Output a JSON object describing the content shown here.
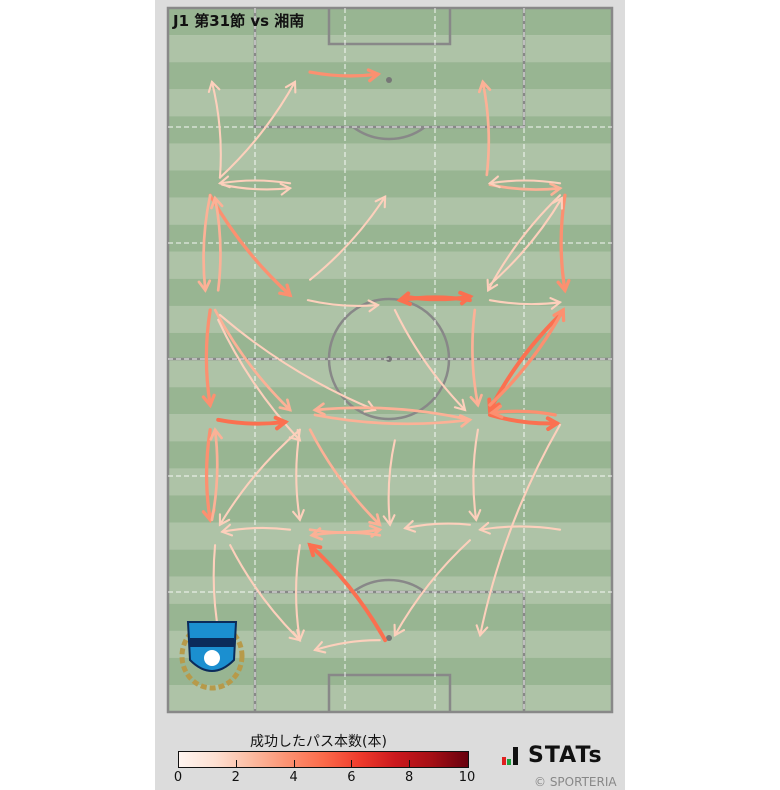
{
  "title": "J1 第31節 vs 湘南",
  "colorbar": {
    "title": "成功したパス本数(本)",
    "ticks": [
      "0",
      "2",
      "4",
      "6",
      "8",
      "10"
    ],
    "range": [
      0,
      10
    ],
    "colormap": "Reds"
  },
  "branding": {
    "stats": "STATs",
    "copyright": "© SPORTERIA"
  },
  "colors": {
    "pitch_light": "#aec3a7",
    "pitch_dark": "#98b592",
    "lines": "#888888",
    "panel": "#dcdcdc"
  },
  "chart_data": {
    "type": "pass-map",
    "units": "percent of pitch (x: width 0-100 left→right, y: length 0-100 top→bottom)",
    "value_label": "成功したパス本数(本)",
    "passes": [
      [
        32,
        9.1,
        47.3,
        9.4,
        3
      ],
      [
        11.7,
        24.1,
        28.6,
        10.5,
        1
      ],
      [
        11.7,
        24.1,
        9.9,
        10.5,
        1
      ],
      [
        12.2,
        25.1,
        27.5,
        25.6,
        1
      ],
      [
        27.5,
        24.9,
        11.7,
        24.9,
        1
      ],
      [
        9.5,
        26.6,
        27.5,
        40.8,
        3
      ],
      [
        9.5,
        26.6,
        8.4,
        40.1,
        2
      ],
      [
        11.3,
        40.1,
        10.6,
        27,
        2
      ],
      [
        32,
        38.6,
        48.9,
        26.8,
        1
      ],
      [
        71.8,
        23.7,
        70.9,
        10.5,
        2
      ],
      [
        72.5,
        25.1,
        88.3,
        25.6,
        2
      ],
      [
        88.3,
        24.9,
        72.5,
        24.9,
        1
      ],
      [
        89.4,
        26.6,
        89.4,
        40.1,
        3
      ],
      [
        88.3,
        26.6,
        72.1,
        40.1,
        1
      ],
      [
        72.5,
        39.3,
        88.7,
        27,
        1
      ],
      [
        68,
        41.5,
        52.3,
        41.5,
        4
      ],
      [
        53.4,
        41,
        68,
        41,
        4
      ],
      [
        31.5,
        41.5,
        47.3,
        42.2,
        1
      ],
      [
        72.5,
        41.5,
        88.3,
        41.8,
        1
      ],
      [
        9.5,
        42.9,
        9.5,
        56.4,
        3
      ],
      [
        10.6,
        42.9,
        27.5,
        57.1,
        2
      ],
      [
        11.7,
        43.6,
        46.6,
        57.1,
        1
      ],
      [
        11.3,
        44.3,
        29.7,
        61.4,
        1
      ],
      [
        69.1,
        42.9,
        69.8,
        56.4,
        2
      ],
      [
        88.3,
        43.6,
        72.5,
        57.1,
        4
      ],
      [
        72.5,
        56.4,
        89,
        42.9,
        3
      ],
      [
        51.1,
        42.9,
        66.9,
        57.1,
        1
      ],
      [
        11.3,
        58.5,
        26.4,
        58.8,
        4
      ],
      [
        68,
        58.5,
        33.1,
        57.1,
        2
      ],
      [
        33.1,
        57.8,
        68,
        58.5,
        2
      ],
      [
        72.5,
        57.8,
        87.6,
        59,
        4
      ],
      [
        87.2,
        57.8,
        73,
        57.5,
        3
      ],
      [
        9.5,
        59.9,
        9.5,
        72.7,
        3
      ],
      [
        9.9,
        72.7,
        10.6,
        59.9,
        2
      ],
      [
        29.7,
        59.9,
        11.7,
        73.4,
        1
      ],
      [
        29.7,
        59.9,
        29.7,
        72.7,
        1
      ],
      [
        32,
        59.9,
        47.7,
        73.4,
        2
      ],
      [
        51.1,
        61.4,
        50,
        73.4,
        1
      ],
      [
        69.8,
        59.9,
        69.4,
        72.7,
        1
      ],
      [
        88.3,
        59.2,
        70.3,
        89.1,
        1
      ],
      [
        27.5,
        74.1,
        12.2,
        74.4,
        1
      ],
      [
        32,
        74.1,
        47.7,
        74.1,
        2
      ],
      [
        47.7,
        74.9,
        32.4,
        74.9,
        2
      ],
      [
        68,
        73.4,
        53.4,
        73.9,
        1
      ],
      [
        88.3,
        74.1,
        70.3,
        74.1,
        1
      ],
      [
        14,
        76.3,
        29.7,
        89.8,
        1
      ],
      [
        29.7,
        76.3,
        29.7,
        89.8,
        1
      ],
      [
        48.9,
        89.8,
        32,
        76.3,
        4
      ],
      [
        68,
        75.6,
        51.1,
        89.1,
        1
      ],
      [
        47.7,
        89.8,
        33.1,
        91.2,
        1
      ],
      [
        10.6,
        76.3,
        12.2,
        91.2,
        1
      ]
    ]
  }
}
